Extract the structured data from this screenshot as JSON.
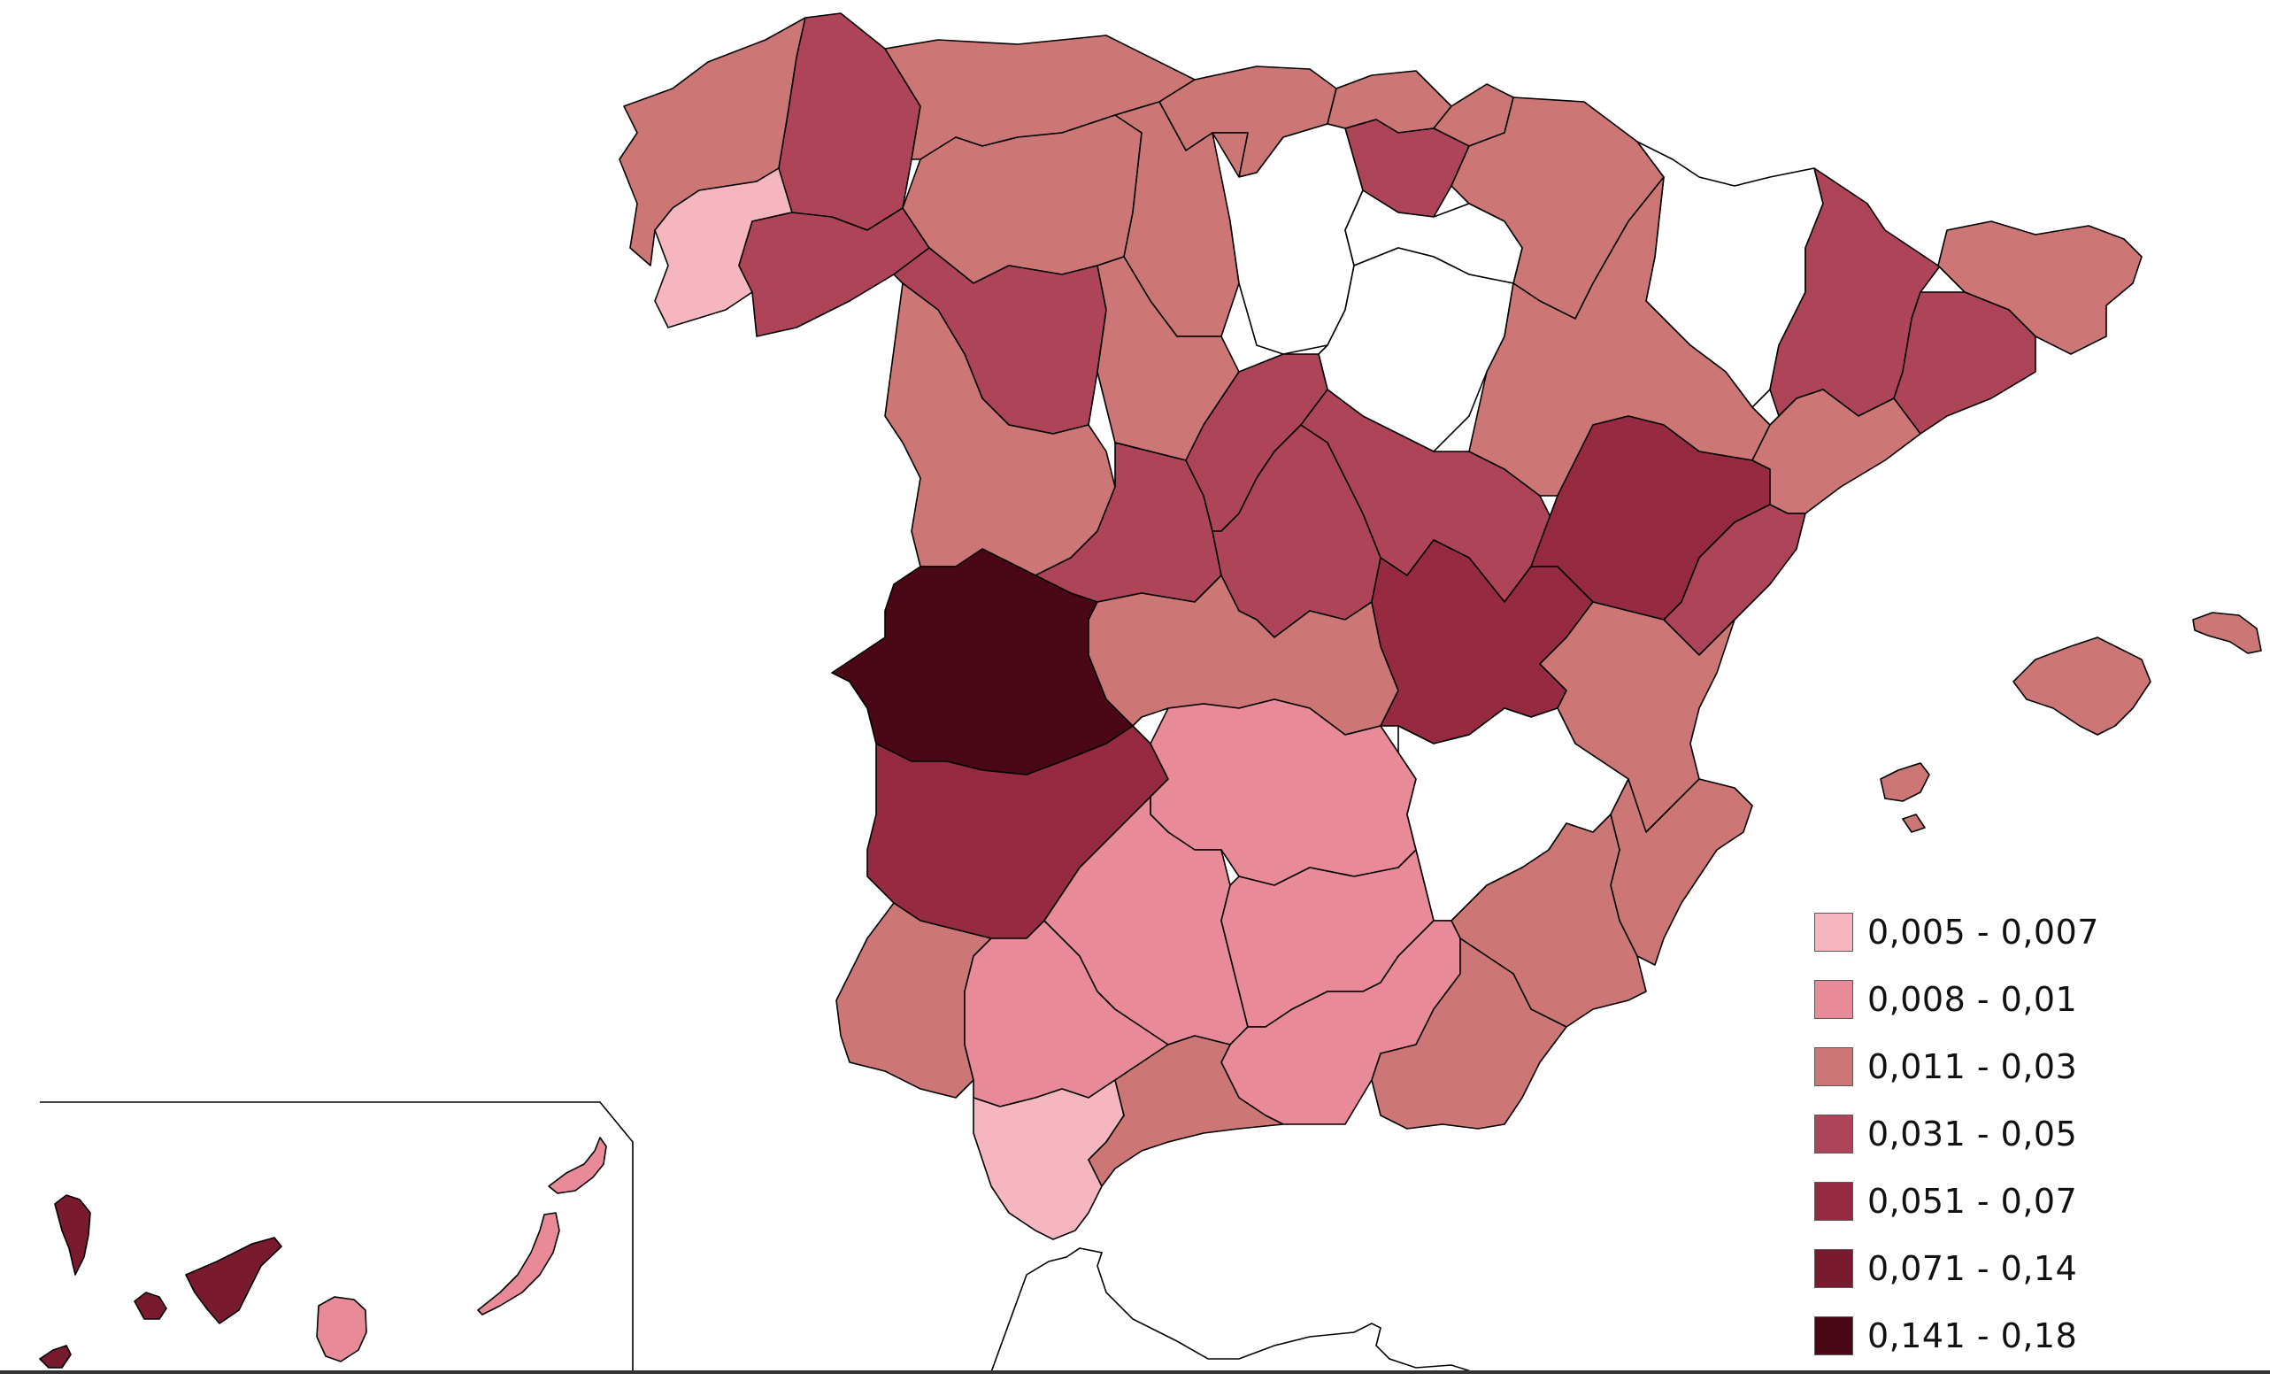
{
  "legend": {
    "items": [
      {
        "label": "0,005 - 0,007",
        "color": "#f6b6c0"
      },
      {
        "label": "0,008 - 0,01",
        "color": "#e88a98"
      },
      {
        "label": "0,011 - 0,03",
        "color": "#cc7676"
      },
      {
        "label": "0,031 - 0,05",
        "color": "#ad4458"
      },
      {
        "label": "0,051 - 0,07",
        "color": "#952a40"
      },
      {
        "label": "0,071 - 0,14",
        "color": "#7a1a2e"
      },
      {
        "label": "0,141 - 0,18",
        "color": "#4a0715"
      }
    ]
  },
  "regions": [
    {
      "id": "a-coruna",
      "class": 2
    },
    {
      "id": "lugo",
      "class": 3
    },
    {
      "id": "pontevedra",
      "class": 0
    },
    {
      "id": "ourense",
      "class": 3
    },
    {
      "id": "asturias",
      "class": 2
    },
    {
      "id": "cantabria",
      "class": 2
    },
    {
      "id": "bizkaia",
      "class": 2
    },
    {
      "id": "gipuzkoa",
      "class": 2
    },
    {
      "id": "araba",
      "class": 3
    },
    {
      "id": "navarra",
      "class": 2
    },
    {
      "id": "leon",
      "class": 2
    },
    {
      "id": "palencia",
      "class": 2
    },
    {
      "id": "burgos",
      "class": null
    },
    {
      "id": "la-rioja",
      "class": null
    },
    {
      "id": "zamora",
      "class": 3
    },
    {
      "id": "valladolid",
      "class": 2
    },
    {
      "id": "soria",
      "class": null
    },
    {
      "id": "salamanca",
      "class": 2
    },
    {
      "id": "avila",
      "class": 3
    },
    {
      "id": "segovia",
      "class": 3
    },
    {
      "id": "madrid",
      "class": 3
    },
    {
      "id": "guadalajara",
      "class": 3
    },
    {
      "id": "huesca",
      "class": null
    },
    {
      "id": "zaragoza",
      "class": 2
    },
    {
      "id": "teruel",
      "class": 4
    },
    {
      "id": "lleida",
      "class": 3
    },
    {
      "id": "girona",
      "class": 2
    },
    {
      "id": "barcelona",
      "class": 3
    },
    {
      "id": "tarragona",
      "class": 2
    },
    {
      "id": "castellon",
      "class": 3
    },
    {
      "id": "caceres",
      "class": 6
    },
    {
      "id": "toledo",
      "class": 2
    },
    {
      "id": "cuenca",
      "class": 4
    },
    {
      "id": "valencia",
      "class": 2
    },
    {
      "id": "badajoz",
      "class": 4
    },
    {
      "id": "ciudad-real",
      "class": 1
    },
    {
      "id": "albacete",
      "class": null
    },
    {
      "id": "alicante",
      "class": 2
    },
    {
      "id": "huelva",
      "class": 2
    },
    {
      "id": "sevilla",
      "class": 1
    },
    {
      "id": "cordoba",
      "class": 1
    },
    {
      "id": "jaen",
      "class": 1
    },
    {
      "id": "granada",
      "class": 1
    },
    {
      "id": "almeria",
      "class": 2
    },
    {
      "id": "murcia",
      "class": 2
    },
    {
      "id": "cadiz",
      "class": 0
    },
    {
      "id": "malaga",
      "class": 2
    },
    {
      "id": "mallorca",
      "class": 2
    },
    {
      "id": "menorca",
      "class": 2
    },
    {
      "id": "ibiza",
      "class": 2
    },
    {
      "id": "la-palma",
      "class": 5
    },
    {
      "id": "tenerife",
      "class": 5
    },
    {
      "id": "la-gomera",
      "class": 5
    },
    {
      "id": "el-hierro",
      "class": 5
    },
    {
      "id": "gran-canaria",
      "class": 1
    },
    {
      "id": "fuerteventura",
      "class": 1
    },
    {
      "id": "lanzarote",
      "class": 1
    }
  ]
}
